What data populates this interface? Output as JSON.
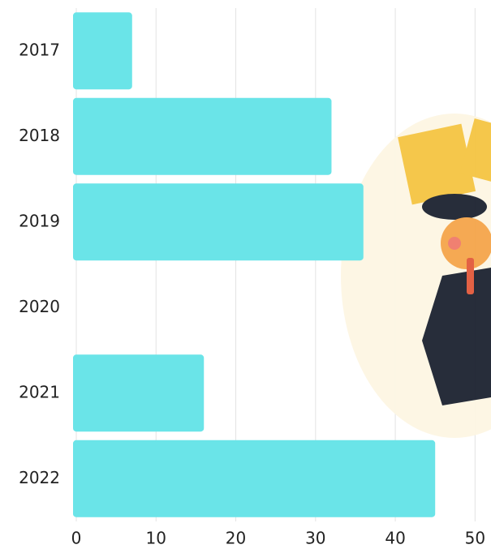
{
  "chart_data": {
    "type": "bar",
    "orientation": "horizontal",
    "categories": [
      "2017",
      "2018",
      "2019",
      "2020",
      "2021",
      "2022"
    ],
    "values": [
      7,
      32,
      36,
      0,
      16,
      45
    ],
    "color": "#6ae4e8",
    "xlim": [
      0,
      52
    ],
    "xticks": [
      0,
      10,
      20,
      30,
      40,
      50
    ],
    "grid": true
  }
}
